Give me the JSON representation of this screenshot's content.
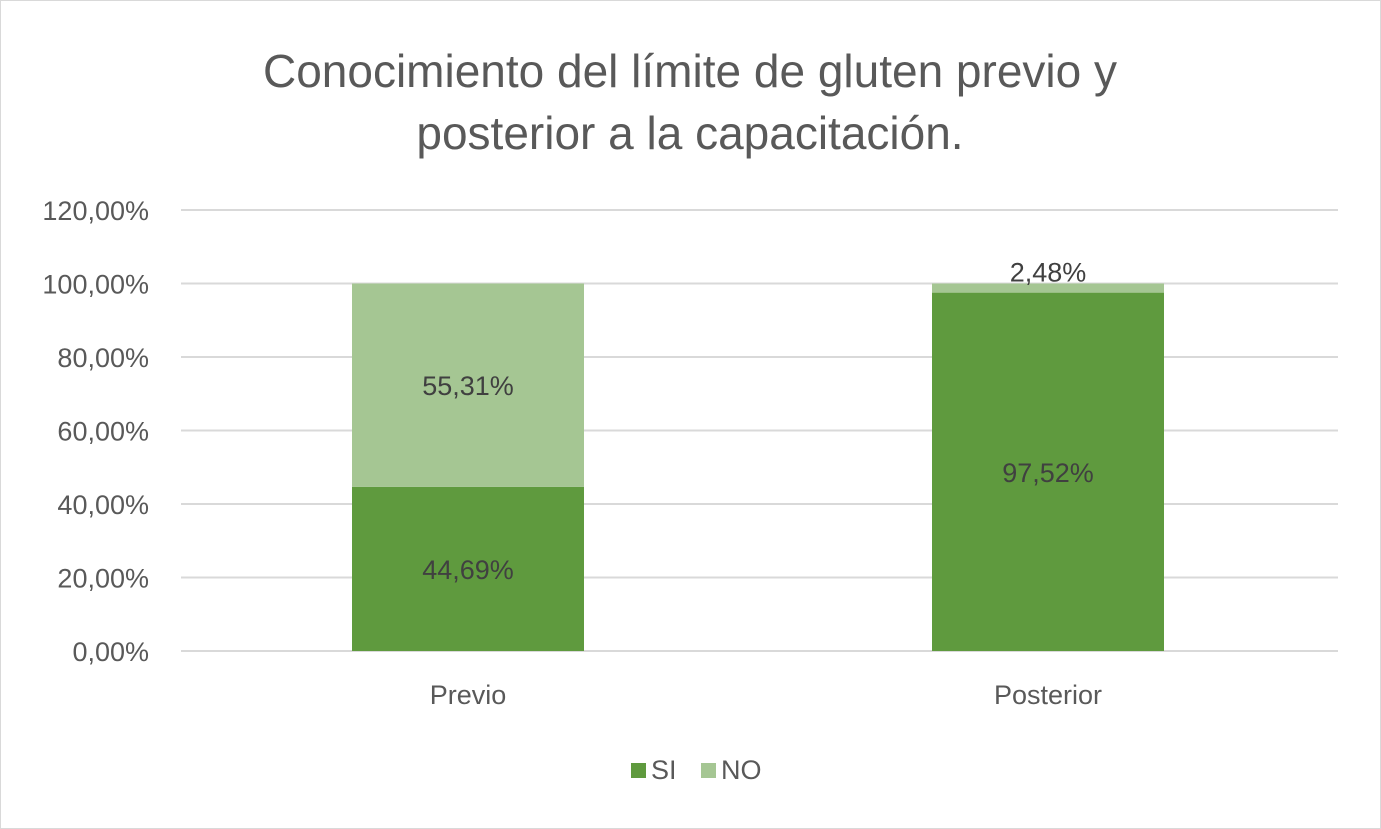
{
  "chart_data": {
    "type": "bar",
    "stacked": true,
    "title": "Conocimiento del límite de gluten previo y posterior a la capacitación.",
    "title_lines": [
      "Conocimiento del límite de gluten previo y",
      "posterior a la capacitación."
    ],
    "categories": [
      "Previo",
      "Posterior"
    ],
    "series": [
      {
        "name": "SI",
        "values": [
          44.69,
          97.52
        ],
        "labels": [
          "44,69%",
          "97,52%"
        ],
        "color": "#5f9a3e"
      },
      {
        "name": "NO",
        "values": [
          55.31,
          2.48
        ],
        "labels": [
          "55,31%",
          "2,48%"
        ],
        "color": "#a5c693"
      }
    ],
    "yticks": [
      "0,00%",
      "20,00%",
      "40,00%",
      "60,00%",
      "80,00%",
      "100,00%",
      "120,00%"
    ],
    "ytick_values": [
      0,
      20,
      40,
      60,
      80,
      100,
      120
    ],
    "ylim": [
      0,
      120
    ],
    "grid": true,
    "legend_position": "bottom",
    "xlabel": "",
    "ylabel": ""
  }
}
